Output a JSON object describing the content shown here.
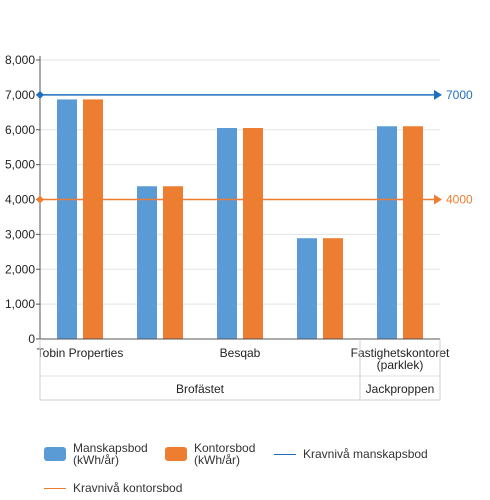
{
  "chart_data": {
    "type": "bar",
    "categories": [
      "Tobin Properties",
      "",
      "Besqab",
      "",
      "Fastighetskontoret (parklek)"
    ],
    "category_groups": [
      {
        "label": "Brofästet",
        "span": 4
      },
      {
        "label": "Jackproppen",
        "span": 1
      }
    ],
    "series": [
      {
        "name": "Manskapsbod (kWh/år)",
        "color": "#5b9bd5",
        "values": [
          6870,
          4380,
          6050,
          2890,
          6100
        ]
      },
      {
        "name": "Kontorsbod (kWh/år)",
        "color": "#ed7d31",
        "values": [
          6870,
          4380,
          6050,
          2890,
          6100
        ]
      }
    ],
    "reference_lines": [
      {
        "name": "Kravnivå manskapsbod",
        "value": 7000,
        "label": "7000",
        "color": "#1f6fbf"
      },
      {
        "name": "Kravnivå kontorsbod",
        "value": 4000,
        "label": "4000",
        "color": "#ed7d31"
      }
    ],
    "ylim": [
      0,
      8000
    ],
    "yticks": [
      "0",
      "1,000",
      "2,000",
      "3,000",
      "4,000",
      "5,000",
      "6,000",
      "7,000",
      "8,000"
    ],
    "grid": true,
    "legend_position": "bottom"
  }
}
